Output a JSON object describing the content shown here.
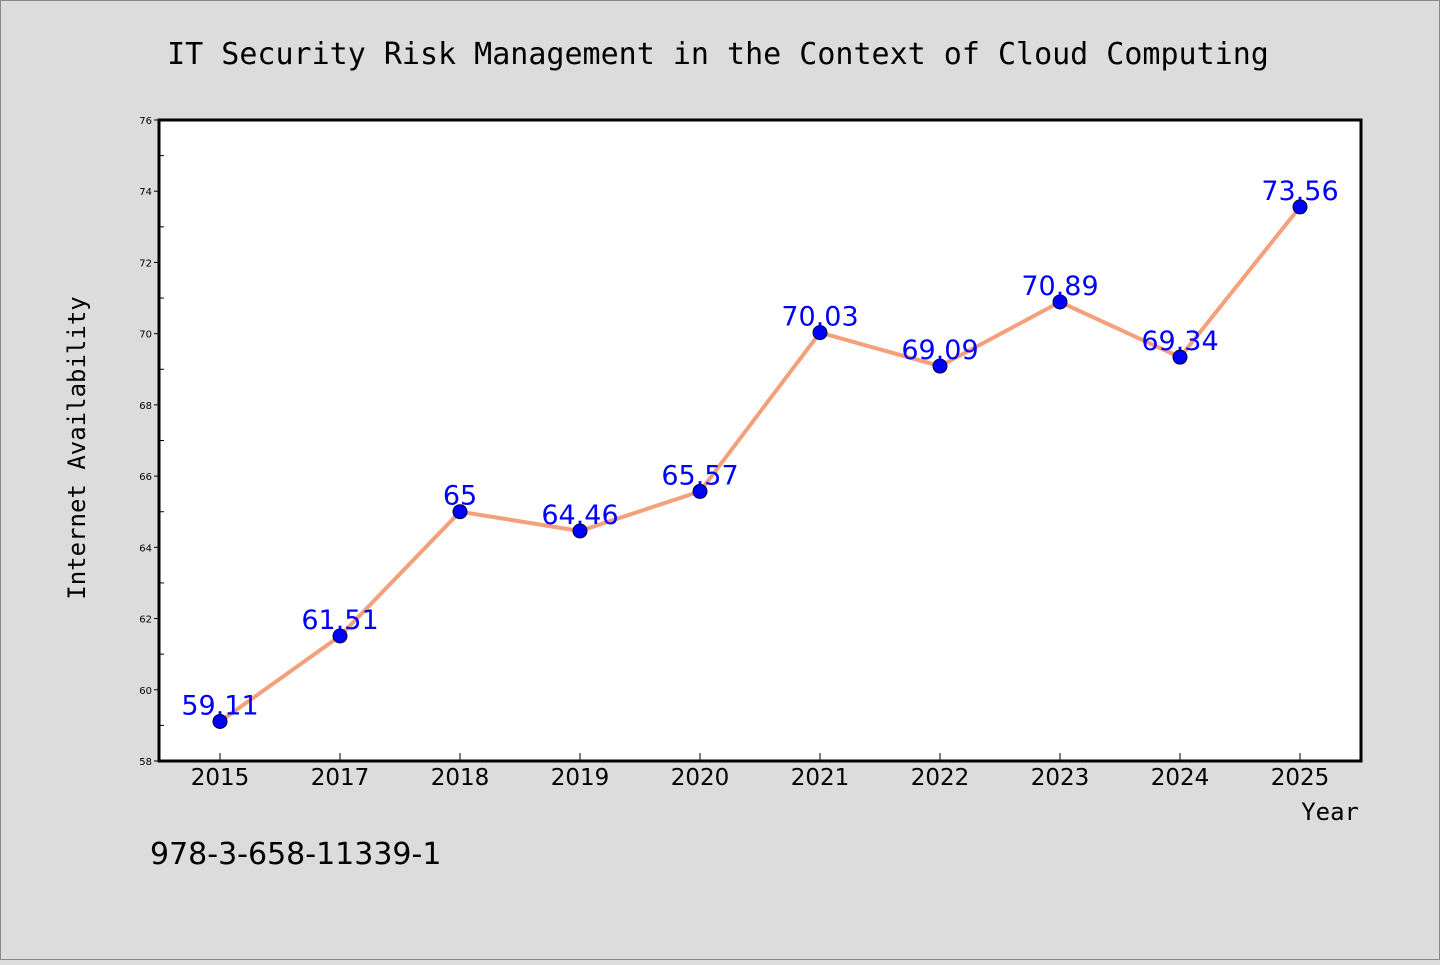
{
  "chart_data": {
    "type": "line",
    "title": "IT Security Risk Management in the Context of Cloud Computing",
    "xlabel": "Year",
    "ylabel": "Internet Availability",
    "categories": [
      "2015",
      "2017",
      "2018",
      "2019",
      "2020",
      "2021",
      "2022",
      "2023",
      "2024",
      "2025"
    ],
    "values": [
      59.11,
      61.51,
      65,
      64.46,
      65.57,
      70.03,
      69.09,
      70.89,
      69.34,
      73.56
    ],
    "data_labels": [
      "59.11",
      "61.51",
      "65",
      "64.46",
      "65.57",
      "70.03",
      "69.09",
      "70.89",
      "69.34",
      "73.56"
    ],
    "ylim": [
      58,
      76
    ],
    "y_ticks": [
      "58",
      "60",
      "62",
      "64",
      "66",
      "68",
      "70",
      "72",
      "74",
      "76"
    ],
    "grid": false,
    "colors": {
      "line": "#f4a07a",
      "marker": "#0000ff",
      "label": "#0000ff",
      "page_bg": "#dcdcdc",
      "plot_bg": "#ffffff"
    }
  },
  "footer": {
    "isbn": "978-3-658-11339-1"
  }
}
